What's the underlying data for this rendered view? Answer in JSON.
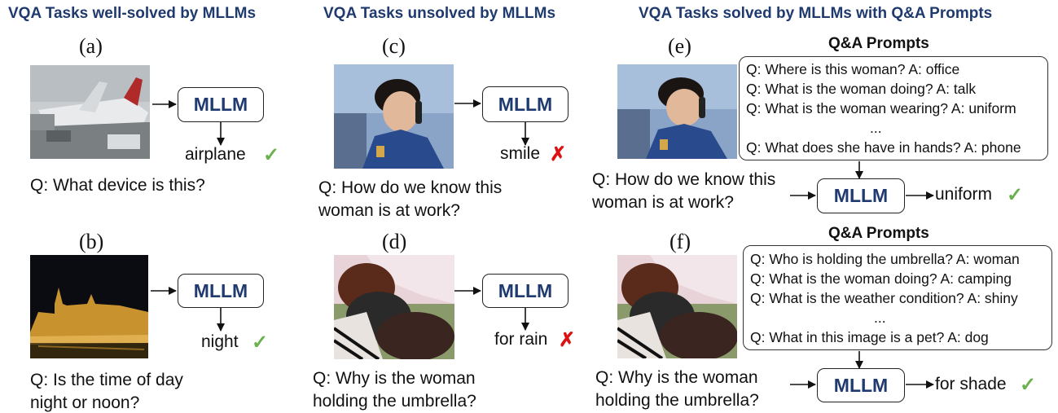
{
  "columns": {
    "left_title": "VQA Tasks well-solved by MLLMs",
    "mid_title": "VQA Tasks unsolved by MLLMs",
    "right_title": "VQA Tasks solved by MLLMs with Q&A Prompts"
  },
  "model_label": "MLLM",
  "panels": {
    "a": {
      "label": "(a)",
      "question": "Q: What device is this?",
      "answer": "airplane",
      "result_icon": "check-icon"
    },
    "b": {
      "label": "(b)",
      "question_line1": "Q: Is the time of day",
      "question_line2": "night or noon?",
      "answer": "night",
      "result_icon": "check-icon"
    },
    "c": {
      "label": "(c)",
      "question_line1": "Q: How do we know this",
      "question_line2": "woman is at work?",
      "answer": "smile",
      "result_icon": "cross-icon"
    },
    "d": {
      "label": "(d)",
      "question_line1": "Q: Why is the woman",
      "question_line2": "holding the umbrella?",
      "answer": "for rain",
      "result_icon": "cross-icon"
    },
    "e": {
      "label": "(e)",
      "prompts_title": "Q&A Prompts",
      "prompts": [
        "Q: Where is this woman? A: office",
        "Q: What is the woman doing? A: talk",
        "Q: What is the woman wearing? A: uniform",
        "...",
        "Q: What does she have in hands? A: phone"
      ],
      "question_line1": "Q: How do we know this",
      "question_line2": "woman is at work?",
      "answer": "uniform",
      "result_icon": "check-icon"
    },
    "f": {
      "label": "(f)",
      "prompts_title": "Q&A Prompts",
      "prompts": [
        "Q: Who is holding the umbrella? A: woman",
        "Q: What is the woman doing? A: camping",
        "Q: What is the weather condition? A: shiny",
        "...",
        "Q: What in this image is a pet? A: dog"
      ],
      "question_line1": "Q: Why is the woman",
      "question_line2": "holding the umbrella?",
      "answer": "for shade",
      "result_icon": "check-icon"
    }
  },
  "colors": {
    "title_blue": "#1f3a6e",
    "check_green": "#6ab04c",
    "cross_red": "#dd1111"
  }
}
